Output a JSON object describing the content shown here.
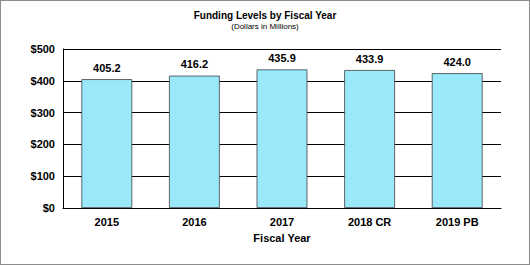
{
  "chart_data": {
    "type": "bar",
    "title": "Funding Levels by Fiscal Year",
    "subtitle": "(Dollars in Millions)",
    "x_label": "Fiscal Year",
    "categories": [
      "2015",
      "2016",
      "2017",
      "2018 CR",
      "2019 PB"
    ],
    "values": [
      405.2,
      416.2,
      435.9,
      433.9,
      424.0
    ],
    "value_labels": [
      "405.2",
      "416.2",
      "435.9",
      "433.9",
      "424.0"
    ],
    "color": "#99e9fb",
    "ylim": [
      0,
      500
    ],
    "yticks": [
      {
        "value": 0,
        "label": "$0"
      },
      {
        "value": 100,
        "label": "$100"
      },
      {
        "value": 200,
        "label": "$200"
      },
      {
        "value": 300,
        "label": "$300"
      },
      {
        "value": 400,
        "label": "$400"
      },
      {
        "value": 500,
        "label": "$500"
      }
    ],
    "grid": true,
    "data_labels": true
  }
}
